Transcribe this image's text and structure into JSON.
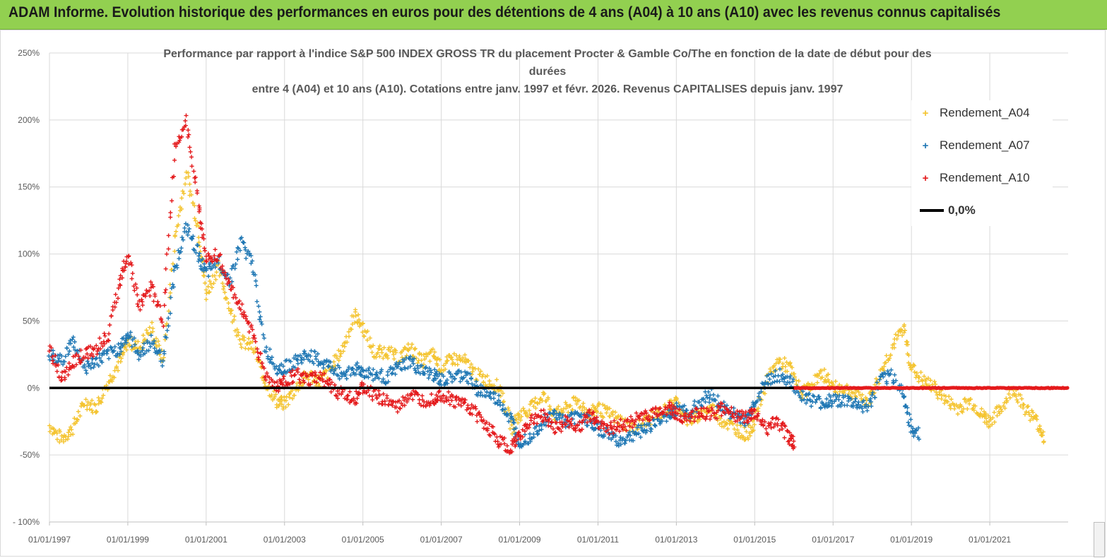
{
  "banner": {
    "text": "ADAM Informe. Evolution historique des performances en euros pour des détentions de 4 ans (A04) à 10 ans (A10) avec les revenus connus capitalisés",
    "background": "#92d050"
  },
  "chart_data": {
    "type": "scatter",
    "title_lines": [
      "Performance par rapport à l'indice S&P 500 INDEX GROSS TR  du placement Procter & Gamble Co/The en fonction de la date de début pour des",
      "durées",
      "entre 4 (A04) et 10 ans (A10). Cotations entre janv. 1997 et févr. 2026. Revenus CAPITALISES depuis janv. 1997"
    ],
    "y_ticks": [
      {
        "value": 250,
        "label": "250%"
      },
      {
        "value": 200,
        "label": "200%"
      },
      {
        "value": 150,
        "label": "150%"
      },
      {
        "value": 100,
        "label": "100%"
      },
      {
        "value": 50,
        "label": "50%"
      },
      {
        "value": 0,
        "label": "0%"
      },
      {
        "value": -50,
        "label": "-50%"
      },
      {
        "value": -100,
        "label": "- 100%"
      }
    ],
    "x_ticks": [
      {
        "value": 1997,
        "label": "01/01/1997"
      },
      {
        "value": 1999,
        "label": "01/01/1999"
      },
      {
        "value": 2001,
        "label": "01/01/2001"
      },
      {
        "value": 2003,
        "label": "01/01/2003"
      },
      {
        "value": 2005,
        "label": "01/01/2005"
      },
      {
        "value": 2007,
        "label": "01/01/2007"
      },
      {
        "value": 2009,
        "label": "01/01/2009"
      },
      {
        "value": 2011,
        "label": "01/01/2011"
      },
      {
        "value": 2013,
        "label": "01/01/2013"
      },
      {
        "value": 2015,
        "label": "01/01/2015"
      },
      {
        "value": 2017,
        "label": "01/01/2017"
      },
      {
        "value": 2019,
        "label": "01/01/2019"
      },
      {
        "value": 2021,
        "label": "01/01/2021"
      }
    ],
    "xlim": [
      1997,
      2023
    ],
    "ylim": [
      -100,
      250
    ],
    "grid": "horizontal",
    "legend_position": "top-right",
    "series": [
      {
        "name": "Rendement_A04",
        "color": "#f4c430",
        "marker": "+",
        "x": [
          1997.0,
          1997.3,
          1997.6,
          1997.9,
          1998.2,
          1998.5,
          1998.8,
          1999.0,
          1999.3,
          1999.6,
          1999.9,
          2000.2,
          2000.5,
          2000.8,
          2001.0,
          2001.3,
          2001.6,
          2001.9,
          2002.2,
          2002.5,
          2002.8,
          2003.0,
          2003.3,
          2003.6,
          2003.9,
          2004.2,
          2004.5,
          2004.8,
          2005.0,
          2005.3,
          2005.6,
          2005.9,
          2006.2,
          2006.5,
          2006.8,
          2007.0,
          2007.3,
          2007.6,
          2007.9,
          2008.2,
          2008.5,
          2008.8,
          2009.0,
          2009.3,
          2009.6,
          2009.9,
          2010.2,
          2010.5,
          2010.8,
          2011.0,
          2011.3,
          2011.6,
          2011.9,
          2012.2,
          2012.5,
          2012.8,
          2013.0,
          2013.3,
          2013.6,
          2013.9,
          2014.2,
          2014.5,
          2014.8,
          2015.0,
          2015.3,
          2015.6,
          2015.9,
          2016.2,
          2016.5,
          2016.8,
          2017.0,
          2017.3,
          2017.6,
          2017.9,
          2018.2,
          2018.5,
          2018.8,
          2019.0,
          2019.3,
          2019.6,
          2019.9,
          2020.2,
          2020.5,
          2020.8,
          2021.0,
          2021.3,
          2021.6,
          2021.9,
          2022.2,
          2022.4
        ],
        "y": [
          -28,
          -38,
          -30,
          -10,
          -15,
          5,
          20,
          35,
          30,
          45,
          20,
          110,
          160,
          120,
          70,
          90,
          60,
          35,
          30,
          5,
          -10,
          -12,
          0,
          10,
          5,
          15,
          30,
          55,
          45,
          25,
          28,
          22,
          30,
          20,
          25,
          15,
          22,
          20,
          10,
          5,
          0,
          -30,
          -20,
          -15,
          -5,
          -20,
          -15,
          -10,
          -20,
          -15,
          -20,
          -25,
          -30,
          -25,
          -20,
          -15,
          -10,
          -25,
          -20,
          -15,
          -25,
          -30,
          -35,
          -25,
          5,
          20,
          15,
          -5,
          5,
          10,
          0,
          0,
          -5,
          -10,
          10,
          30,
          45,
          15,
          5,
          0,
          -10,
          -15,
          -10,
          -20,
          -25,
          -15,
          0,
          -15,
          -25,
          -38
        ]
      },
      {
        "name": "Rendement_A07",
        "color": "#1f77b4",
        "marker": "+",
        "x": [
          1997.0,
          1997.3,
          1997.6,
          1997.9,
          1998.2,
          1998.5,
          1998.8,
          1999.0,
          1999.3,
          1999.6,
          1999.9,
          2000.2,
          2000.5,
          2000.8,
          2001.0,
          2001.3,
          2001.6,
          2001.9,
          2002.2,
          2002.5,
          2002.8,
          2003.0,
          2003.3,
          2003.6,
          2003.9,
          2004.2,
          2004.5,
          2004.8,
          2005.0,
          2005.3,
          2005.6,
          2005.9,
          2006.2,
          2006.5,
          2006.8,
          2007.0,
          2007.3,
          2007.6,
          2007.9,
          2008.2,
          2008.5,
          2008.8,
          2009.0,
          2009.3,
          2009.6,
          2009.9,
          2010.2,
          2010.5,
          2010.8,
          2011.0,
          2011.3,
          2011.6,
          2011.9,
          2012.2,
          2012.5,
          2012.8,
          2013.0,
          2013.3,
          2013.6,
          2013.9,
          2014.2,
          2014.5,
          2014.8,
          2015.0,
          2015.3,
          2015.6,
          2015.9,
          2016.2,
          2016.5,
          2016.8,
          2017.0,
          2017.3,
          2017.6,
          2017.9,
          2018.2,
          2018.5,
          2018.8,
          2019.0,
          2019.2
        ],
        "y": [
          25,
          20,
          35,
          15,
          20,
          25,
          30,
          40,
          25,
          35,
          20,
          90,
          120,
          100,
          85,
          95,
          80,
          110,
          90,
          30,
          15,
          15,
          20,
          25,
          20,
          15,
          10,
          15,
          12,
          10,
          8,
          15,
          20,
          12,
          10,
          5,
          8,
          10,
          0,
          -5,
          -10,
          -25,
          -40,
          -35,
          -25,
          -20,
          -25,
          -20,
          -25,
          -30,
          -35,
          -40,
          -35,
          -30,
          -25,
          -20,
          -15,
          -20,
          -10,
          -5,
          -15,
          -20,
          -25,
          -10,
          5,
          10,
          5,
          -5,
          -10,
          -12,
          -8,
          -10,
          -12,
          -15,
          5,
          10,
          -5,
          -30,
          -35
        ]
      },
      {
        "name": "Rendement_A10",
        "color": "#e41a1c",
        "marker": "+",
        "x": [
          1997.0,
          1997.3,
          1997.6,
          1997.9,
          1998.2,
          1998.5,
          1998.8,
          1999.0,
          1999.3,
          1999.6,
          1999.9,
          2000.2,
          2000.5,
          2000.8,
          2001.0,
          2001.3,
          2001.6,
          2001.9,
          2002.2,
          2002.5,
          2002.8,
          2003.0,
          2003.3,
          2003.6,
          2003.9,
          2004.2,
          2004.5,
          2004.8,
          2005.0,
          2005.3,
          2005.6,
          2005.9,
          2006.2,
          2006.5,
          2006.8,
          2007.0,
          2007.3,
          2007.6,
          2007.9,
          2008.2,
          2008.5,
          2008.8,
          2009.0,
          2009.3,
          2009.6,
          2009.9,
          2010.2,
          2010.5,
          2010.8,
          2011.0,
          2011.3,
          2011.6,
          2011.9,
          2012.2,
          2012.5,
          2012.8,
          2013.0,
          2013.3,
          2013.6,
          2013.9,
          2014.2,
          2014.5,
          2014.8,
          2015.0,
          2015.3,
          2015.6,
          2015.9,
          2016.0
        ],
        "y": [
          30,
          5,
          20,
          25,
          30,
          40,
          80,
          100,
          60,
          75,
          50,
          180,
          200,
          140,
          95,
          100,
          75,
          60,
          40,
          10,
          0,
          5,
          10,
          5,
          10,
          0,
          -5,
          -8,
          0,
          -5,
          -10,
          -15,
          -5,
          -10,
          -8,
          -5,
          -10,
          -12,
          -20,
          -30,
          -40,
          -45,
          -35,
          -25,
          -20,
          -30,
          -25,
          -30,
          -20,
          -25,
          -30,
          -28,
          -25,
          -20,
          -18,
          -15,
          -20,
          -22,
          -18,
          -20,
          -15,
          -20,
          -22,
          -20,
          -30,
          -25,
          -38,
          -42
        ]
      },
      {
        "name": "Rendement_A10 (0% plateau)",
        "color": "#e41a1c",
        "marker": "dot",
        "x_range": [
          2016.0,
          2023.0
        ],
        "y_value": 0
      }
    ],
    "reference_line": {
      "name": "0,0%",
      "value": 0,
      "color": "#000000"
    }
  },
  "legend": {
    "items": [
      {
        "label": "Rendement_A04",
        "color": "#f4c430",
        "symbol": "+"
      },
      {
        "label": "Rendement_A07",
        "color": "#1f77b4",
        "symbol": "+"
      },
      {
        "label": "Rendement_A10",
        "color": "#e41a1c",
        "symbol": "+"
      },
      {
        "label": "0,0%",
        "color": "#000000",
        "symbol": "line"
      }
    ]
  }
}
